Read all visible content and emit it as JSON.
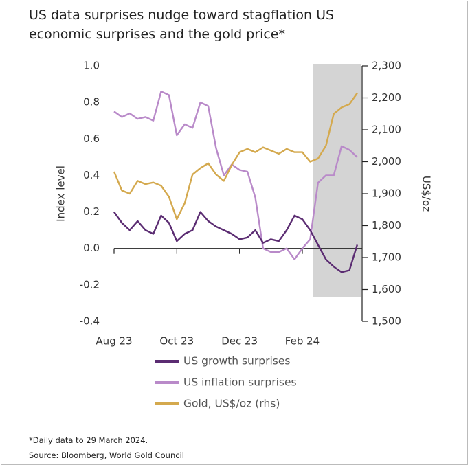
{
  "chart_data": {
    "type": "line",
    "title": "US data surprises nudge toward stagflation US economic surprises and the gold price*",
    "y_label": "Index level",
    "y2_label": "US$/oz",
    "footnote": "*Daily data to 29 March 2024.",
    "source": "Source: Bloomberg, World Gold Council",
    "categories": [
      "Aug 23",
      null,
      null,
      null,
      null,
      null,
      null,
      null,
      "Oct 23",
      null,
      null,
      null,
      null,
      null,
      null,
      null,
      "Dec 23",
      null,
      null,
      null,
      null,
      null,
      null,
      null,
      "Feb 24",
      null,
      null,
      null,
      null,
      null,
      null,
      null
    ],
    "xticks": [
      0,
      8,
      16,
      24
    ],
    "ylim": [
      -0.4,
      1.0
    ],
    "yticks": [
      {
        "value": 1.0,
        "label": "1.0"
      },
      0.8,
      0.6,
      0.4,
      0.2,
      {
        "value": 0.0,
        "label": "0.0"
      },
      -0.2,
      -0.4
    ],
    "y2lim": [
      1500,
      2300
    ],
    "y2ticks": [
      {
        "value": 2300,
        "label": "2,300"
      },
      {
        "value": 2200,
        "label": "2,200"
      },
      {
        "value": 2100,
        "label": "2,100"
      },
      {
        "value": 2000,
        "label": "2,000"
      },
      {
        "value": 1900,
        "label": "1,900"
      },
      {
        "value": 1800,
        "label": "1,800"
      },
      {
        "value": 1700,
        "label": "1,700"
      },
      {
        "value": 1600,
        "label": "1,600"
      },
      {
        "value": 1500,
        "label": "1,500"
      }
    ],
    "series": [
      {
        "name": "US growth surprises",
        "color": "#5b2c72",
        "axis": "y",
        "values": [
          0.2,
          0.14,
          0.1,
          0.15,
          0.1,
          0.08,
          0.18,
          0.14,
          0.04,
          0.08,
          0.1,
          0.2,
          0.15,
          0.12,
          0.1,
          0.08,
          0.05,
          0.06,
          0.1,
          0.03,
          0.05,
          0.04,
          0.1,
          0.18,
          0.16,
          0.1,
          0.02,
          -0.06,
          -0.1,
          -0.13,
          -0.12,
          0.02
        ]
      },
      {
        "name": "US inflation surprises",
        "color": "#b98ac9",
        "axis": "y",
        "values": [
          0.75,
          0.72,
          0.74,
          0.71,
          0.72,
          0.7,
          0.86,
          0.84,
          0.62,
          0.68,
          0.66,
          0.8,
          0.78,
          0.55,
          0.4,
          0.46,
          0.43,
          0.42,
          0.28,
          0.0,
          -0.02,
          -0.02,
          0.0,
          -0.06,
          0.0,
          0.05,
          0.36,
          0.4,
          0.4,
          0.56,
          0.54,
          0.5
        ]
      },
      {
        "name": "Gold, US$/oz (rhs)",
        "color": "#d4a94e",
        "axis": "y2",
        "values": [
          1969,
          1910,
          1900,
          1940,
          1930,
          1935,
          1925,
          1890,
          1820,
          1870,
          1960,
          1980,
          1995,
          1960,
          1940,
          1990,
          2030,
          2040,
          2030,
          2045,
          2035,
          2025,
          2040,
          2030,
          2030,
          2000,
          2010,
          2050,
          2150,
          2170,
          2180,
          2215
        ]
      }
    ]
  }
}
